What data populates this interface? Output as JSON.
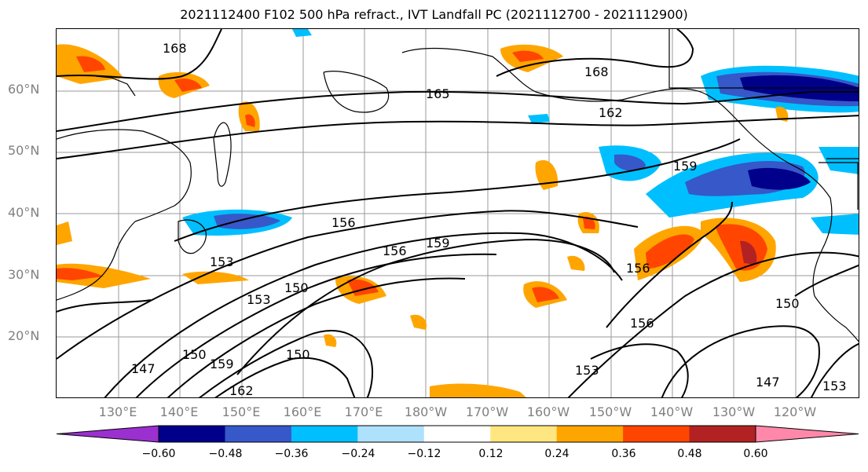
{
  "title": "2021112400 F102 500 hPa refract., IVT Landfall PC (2021112700 - 2021112900)",
  "lat_labels": [
    "60°N",
    "50°N",
    "40°N",
    "30°N",
    "20°N"
  ],
  "lon_labels": [
    "130°E",
    "140°E",
    "150°E",
    "160°E",
    "170°E",
    "180°W",
    "170°W",
    "160°W",
    "150°W",
    "140°W",
    "130°W",
    "120°W"
  ],
  "contour_labels": [
    "168",
    "165",
    "168",
    "162",
    "159",
    "156",
    "159",
    "156",
    "153",
    "150",
    "153",
    "150",
    "147",
    "150",
    "159",
    "162",
    "156",
    "150",
    "147",
    "153",
    "156",
    "153"
  ],
  "colorbar": {
    "ticks": [
      "−0.60",
      "−0.48",
      "−0.36",
      "−0.24",
      "−0.12",
      "0.12",
      "0.24",
      "0.36",
      "0.48",
      "0.60"
    ],
    "colors": [
      "#9b30d0",
      "#00008b",
      "#3658c8",
      "#00bfff",
      "#aee1fb",
      "#ffffff",
      "#ffe680",
      "#ffa500",
      "#ff4500",
      "#b22222",
      "#ff88aa"
    ]
  }
}
